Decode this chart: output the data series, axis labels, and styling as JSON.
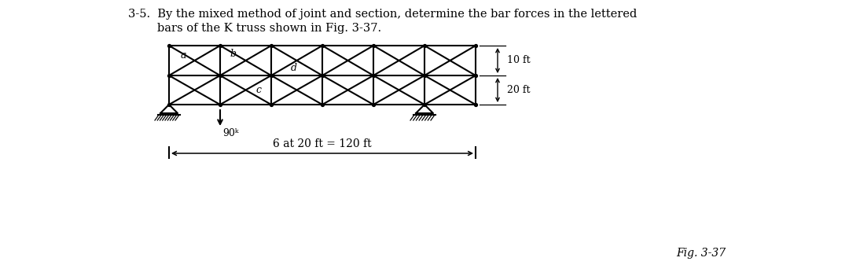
{
  "title_line1": "3-5.  By the mixed method of joint and section, determine the bar forces in the lettered",
  "title_line2": "        bars of the K truss shown in Fig. 3-37.",
  "fig_label": "Fig. 3-37",
  "dim_label_10ft": "10 ft",
  "dim_label_20ft": "20 ft",
  "dim_label_span": "6 at 20 ft = 120 ft",
  "load_label": "90ᵏ",
  "bg_color": "#ffffff",
  "line_color": "#000000"
}
